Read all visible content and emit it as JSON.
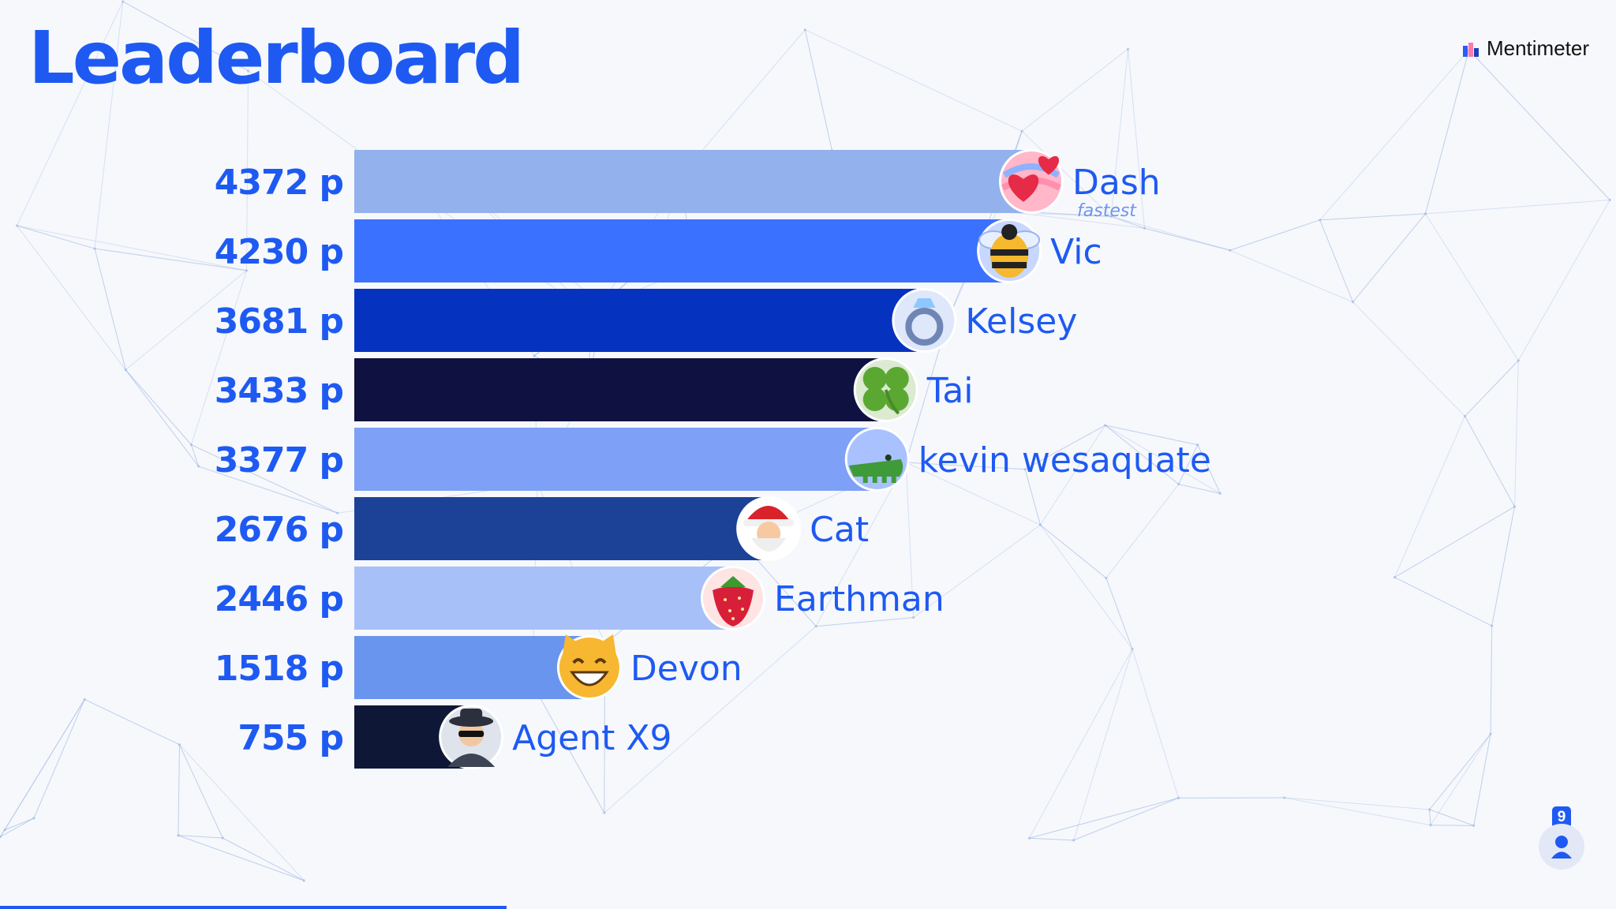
{
  "header": {
    "title": "Leaderboard",
    "brand": "Mentimeter"
  },
  "chart_data": {
    "type": "bar",
    "orientation": "horizontal",
    "title": "Leaderboard",
    "score_suffix": "p",
    "xlim": [
      0,
      4372
    ],
    "categories": [
      "Dash",
      "Vic",
      "Kelsey",
      "Tai",
      "kevin wesaquate",
      "Cat",
      "Earthman",
      "Devon",
      "Agent X9"
    ],
    "values": [
      4372,
      4230,
      3681,
      3433,
      3377,
      2676,
      2446,
      1518,
      755
    ],
    "colors": [
      "#93b1ec",
      "#3b71ff",
      "#0632c0",
      "#0f1140",
      "#7ea0f6",
      "#1b4297",
      "#a8c0f8",
      "#6995ee",
      "#0f1736"
    ],
    "avatars": [
      "hearts",
      "bee",
      "ring",
      "clover",
      "crocodile",
      "santa",
      "strawberry",
      "grinning-cat",
      "spy"
    ],
    "annotations": [
      {
        "row": 0,
        "text": "fastest"
      }
    ],
    "grid": false,
    "legend": "none"
  },
  "participants": {
    "count": "9"
  }
}
